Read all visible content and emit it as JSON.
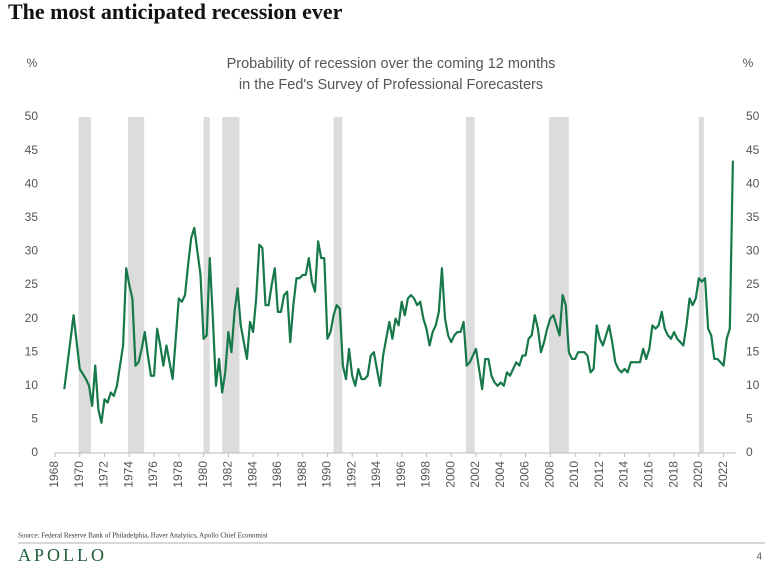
{
  "chart_data": {
    "type": "line",
    "title": "The most anticipated recession ever",
    "subtitle": [
      "Probability of recession over the coming 12 months",
      "in the Fed's Survey of Professional Forecasters"
    ],
    "ylabel": "%",
    "y2label": "%",
    "source": "Source: Federal Reserve Bank of Philadelphia, Haver Analytics, Apollo Chief Economist",
    "brand": "APOLLO",
    "page": "4",
    "color": "#17784a",
    "band_color": "#dcdcdc",
    "xlim": [
      1968,
      2023
    ],
    "xticks": [
      1968,
      1970,
      1972,
      1974,
      1976,
      1978,
      1980,
      1982,
      1984,
      1986,
      1988,
      1990,
      1992,
      1994,
      1996,
      1998,
      2000,
      2002,
      2004,
      2006,
      2008,
      2010,
      2012,
      2014,
      2016,
      2018,
      2020,
      2022
    ],
    "ylim": [
      0,
      50
    ],
    "yticks": [
      0,
      5,
      10,
      15,
      20,
      25,
      30,
      35,
      40,
      45,
      50
    ],
    "y2lim": [
      0,
      50
    ],
    "y2ticks": [
      0,
      5,
      10,
      15,
      20,
      25,
      30,
      35,
      40,
      45,
      50
    ],
    "recessions": [
      [
        1969.9,
        1970.9
      ],
      [
        1973.9,
        1975.2
      ],
      [
        1980.0,
        1980.5
      ],
      [
        1981.5,
        1982.9
      ],
      [
        1990.5,
        1991.2
      ],
      [
        2001.2,
        2001.9
      ],
      [
        2007.9,
        2009.5
      ],
      [
        2020.0,
        2020.4
      ]
    ],
    "x": [
      1968.75,
      1969.5,
      1970,
      1970.5,
      1970.75,
      1971,
      1971.25,
      1971.5,
      1971.75,
      1972,
      1972.25,
      1972.5,
      1972.75,
      1973,
      1973.5,
      1973.75,
      1974,
      1974.25,
      1974.5,
      1974.75,
      1975,
      1975.25,
      1975.5,
      1975.75,
      1976,
      1976.25,
      1976.5,
      1976.75,
      1977,
      1977.25,
      1977.5,
      1977.75,
      1978,
      1978.25,
      1978.5,
      1978.75,
      1979,
      1979.25,
      1979.5,
      1979.75,
      1980,
      1980.25,
      1980.5,
      1980.75,
      1981,
      1981.25,
      1981.5,
      1981.75,
      1982,
      1982.25,
      1982.5,
      1982.75,
      1983,
      1983.25,
      1983.5,
      1983.75,
      1984,
      1984.25,
      1984.5,
      1984.75,
      1985,
      1985.25,
      1985.5,
      1985.75,
      1986,
      1986.25,
      1986.5,
      1986.75,
      1987,
      1987.25,
      1987.5,
      1987.75,
      1988,
      1988.25,
      1988.5,
      1988.75,
      1989,
      1989.25,
      1989.5,
      1989.75,
      1990,
      1990.25,
      1990.5,
      1990.75,
      1991,
      1991.25,
      1991.5,
      1991.75,
      1992,
      1992.25,
      1992.5,
      1992.75,
      1993,
      1993.25,
      1993.5,
      1993.75,
      1994,
      1994.25,
      1994.5,
      1994.75,
      1995,
      1995.25,
      1995.5,
      1995.75,
      1996,
      1996.25,
      1996.5,
      1996.75,
      1997,
      1997.25,
      1997.5,
      1997.75,
      1998,
      1998.25,
      1998.5,
      1998.75,
      1999,
      1999.25,
      1999.5,
      1999.75,
      2000,
      2000.25,
      2000.5,
      2000.75,
      2001,
      2001.25,
      2001.5,
      2001.75,
      2002,
      2002.25,
      2002.5,
      2002.75,
      2003,
      2003.25,
      2003.5,
      2003.75,
      2004,
      2004.25,
      2004.5,
      2004.75,
      2005,
      2005.25,
      2005.5,
      2005.75,
      2006,
      2006.25,
      2006.5,
      2006.75,
      2007,
      2007.25,
      2007.5,
      2007.75,
      2008,
      2008.25,
      2008.5,
      2008.75,
      2009,
      2009.25,
      2009.5,
      2009.75,
      2010,
      2010.25,
      2010.5,
      2010.75,
      2011,
      2011.25,
      2011.5,
      2011.75,
      2012,
      2012.25,
      2012.5,
      2012.75,
      2013,
      2013.25,
      2013.5,
      2013.75,
      2014,
      2014.25,
      2014.5,
      2014.75,
      2015,
      2015.25,
      2015.5,
      2015.75,
      2016,
      2016.25,
      2016.5,
      2016.75,
      2017,
      2017.25,
      2017.5,
      2017.75,
      2018,
      2018.25,
      2018.5,
      2018.75,
      2019,
      2019.25,
      2019.5,
      2019.75,
      2020,
      2020.25,
      2020.5,
      2020.75,
      2021,
      2021.25,
      2021.5,
      2021.75,
      2022,
      2022.25,
      2022.5,
      2022.75
    ],
    "values": [
      9.5,
      20.5,
      12.5,
      11,
      10,
      7,
      13,
      6.5,
      4.5,
      8,
      7.5,
      9,
      8.5,
      10,
      16,
      27.5,
      25,
      23,
      13,
      13.5,
      15.5,
      18,
      14.5,
      11.5,
      11.5,
      18.5,
      16,
      13,
      16,
      13.5,
      11,
      17,
      23,
      22.5,
      23.5,
      28,
      32,
      33.5,
      30,
      26.5,
      17,
      17.5,
      29,
      20,
      10,
      14,
      9,
      12,
      18,
      15,
      21,
      24.5,
      19,
      16.5,
      14,
      19.5,
      18,
      23,
      31,
      30.5,
      22,
      22,
      25,
      27.5,
      21,
      21,
      23.5,
      24,
      16.5,
      22,
      26,
      26,
      26.5,
      26.5,
      29,
      25.5,
      24,
      31.5,
      29,
      29,
      17,
      18,
      20.5,
      22,
      21.5,
      13,
      11,
      15.5,
      11.5,
      10,
      12.5,
      11,
      11,
      11.5,
      14.5,
      15,
      12.5,
      10,
      14.5,
      17,
      19.5,
      17,
      20,
      19,
      22.5,
      20.5,
      23,
      23.5,
      23,
      22,
      22.5,
      20,
      18.5,
      16,
      18,
      19,
      21,
      27.5,
      20,
      17.5,
      16.5,
      17.5,
      18,
      18,
      19.5,
      13,
      13.5,
      14.5,
      15.5,
      12.5,
      9.5,
      14,
      14,
      11.5,
      10.5,
      10,
      10.5,
      10,
      12,
      11.5,
      12.5,
      13.5,
      13,
      14.5,
      14.5,
      17,
      17.5,
      20.5,
      18.5,
      15,
      16.5,
      18.5,
      20,
      20.5,
      19,
      17.5,
      23.5,
      22,
      15,
      14,
      14,
      15,
      15,
      15,
      14.5,
      12,
      12.5,
      19,
      17,
      16,
      17.5,
      19,
      16.5,
      13.5,
      12.5,
      12,
      12.5,
      12,
      13.5,
      13.5,
      13.5,
      13.5,
      15.5,
      14,
      15.5,
      19,
      18.5,
      19,
      21,
      18.5,
      17.5,
      17,
      18,
      17,
      16.5,
      16,
      19,
      23,
      22,
      23,
      26,
      25.5,
      26,
      18.5,
      17.5,
      14,
      14,
      13.5,
      13,
      17,
      18.5,
      43.5
    ]
  }
}
